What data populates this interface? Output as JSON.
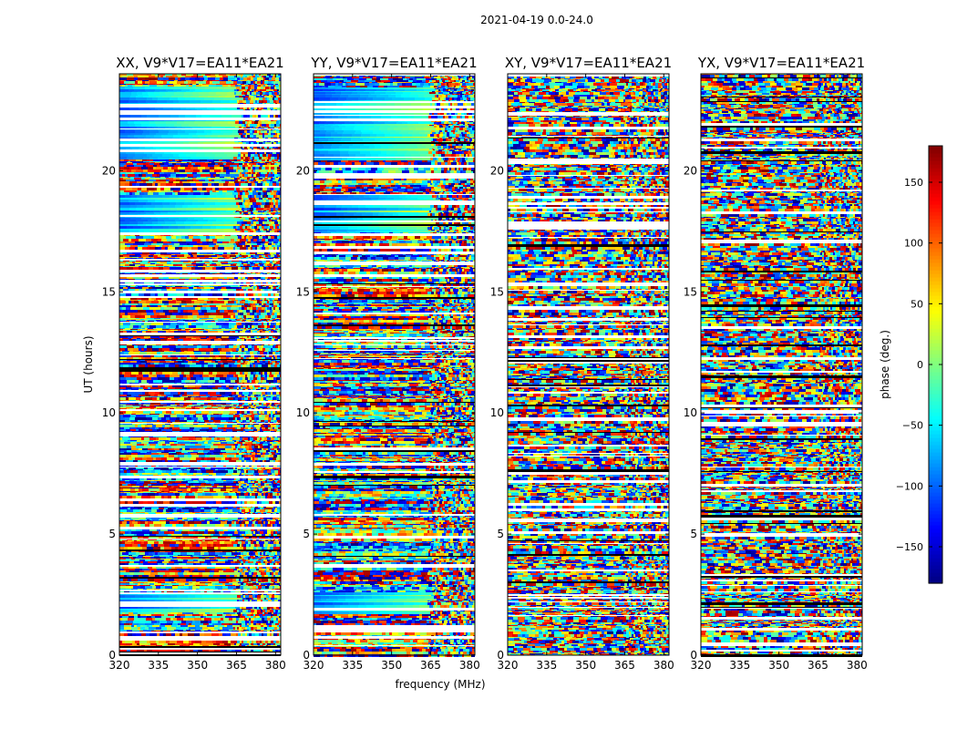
{
  "figure": {
    "suptitle": "2021-04-19 0.0-24.0",
    "xlabel": "frequency (MHz)",
    "ylabel": "UT (hours)"
  },
  "chart_data": {
    "type": "heatmap",
    "x_axis": {
      "label": "frequency (MHz)",
      "range": [
        320,
        382
      ],
      "ticks": [
        320,
        335,
        350,
        365,
        380
      ]
    },
    "y_axis": {
      "label": "UT (hours)",
      "range": [
        0,
        24
      ],
      "ticks": [
        0,
        5,
        10,
        15,
        20
      ]
    },
    "panels": [
      {
        "title": "XX, V9*V17=EA11*EA21"
      },
      {
        "title": "YY, V9*V17=EA11*EA21"
      },
      {
        "title": "XY, V9*V17=EA11*EA21"
      },
      {
        "title": "YX, V9*V17=EA11*EA21"
      }
    ],
    "colorbar": {
      "label": "phase (deg.)",
      "range": [
        -180,
        180
      ],
      "ticks": [
        -150,
        -100,
        -50,
        0,
        50,
        100,
        150
      ],
      "tick_labels": [
        "−150",
        "−100",
        "−50",
        "0",
        "50",
        "100",
        "150"
      ],
      "colormap": "jet"
    }
  }
}
